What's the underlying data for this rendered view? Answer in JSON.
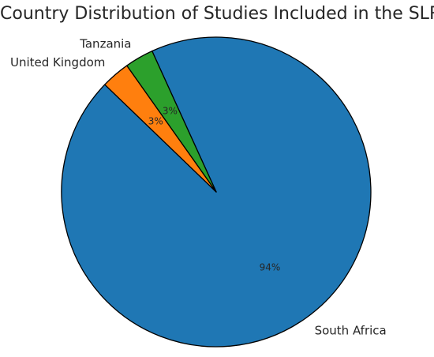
{
  "chart_data": {
    "type": "pie",
    "title": "Country Distribution of Studies Included in the SLR",
    "slices": [
      {
        "label": "South Africa",
        "value": 94,
        "pct_label": "94%",
        "color": "#1f77b4"
      },
      {
        "label": "United Kingdom",
        "value": 3,
        "pct_label": "3%",
        "color": "#ff7f0e"
      },
      {
        "label": "Tanzania",
        "value": 3,
        "pct_label": "3%",
        "color": "#2ca02c"
      }
    ],
    "edge_color": "#000000"
  }
}
